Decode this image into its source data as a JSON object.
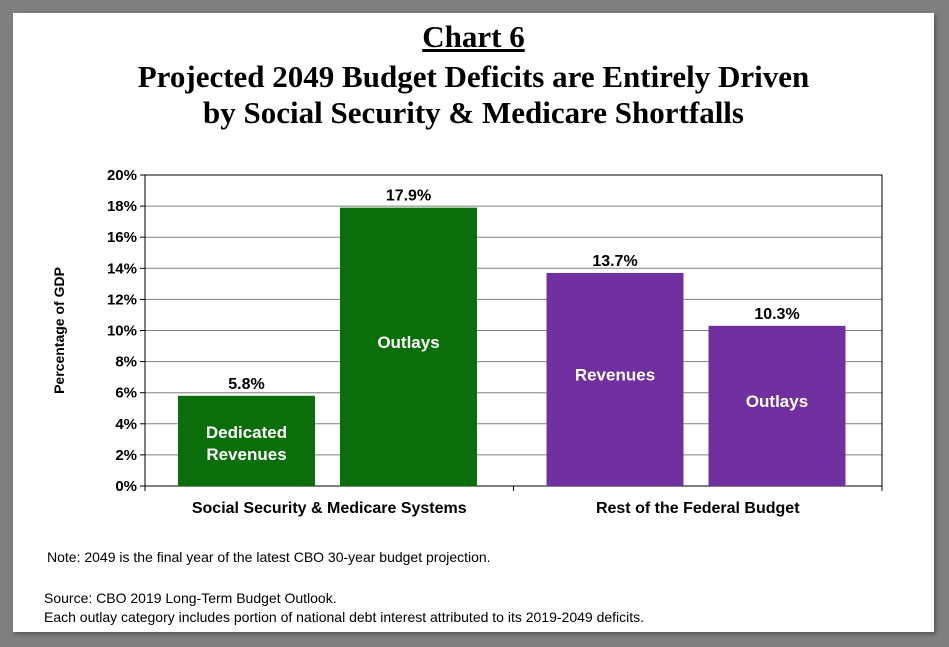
{
  "chart_data": {
    "type": "bar",
    "header": "Chart 6",
    "title_lines": [
      "Projected 2049 Budget Deficits are Entirely Driven",
      "by Social Security & Medicare Shortfalls"
    ],
    "ylabel": "Percentage of GDP",
    "ylim": [
      0,
      20
    ],
    "yticks": [
      "0%",
      "2%",
      "4%",
      "6%",
      "8%",
      "10%",
      "12%",
      "14%",
      "16%",
      "18%",
      "20%"
    ],
    "grid": true,
    "groups": [
      "Social Security & Medicare Systems",
      "Rest of the Federal Budget"
    ],
    "bars": [
      {
        "group": 0,
        "name": "Dedicated Revenues",
        "inner_lines": [
          "Dedicated",
          "Revenues"
        ],
        "value": 5.8,
        "value_label": "5.8%",
        "color": "#0a6e0a"
      },
      {
        "group": 0,
        "name": "Outlays",
        "inner_lines": [
          "Outlays"
        ],
        "value": 17.9,
        "value_label": "17.9%",
        "color": "#0a6e0a"
      },
      {
        "group": 1,
        "name": "Revenues",
        "inner_lines": [
          "Revenues"
        ],
        "value": 13.7,
        "value_label": "13.7%",
        "color": "#7030a0"
      },
      {
        "group": 1,
        "name": "Outlays",
        "inner_lines": [
          "Outlays"
        ],
        "value": 10.3,
        "value_label": "10.3%",
        "color": "#7030a0"
      }
    ]
  },
  "notes": {
    "note": "Note: 2049 is the final year of the latest CBO 30-year budget projection.",
    "source": "Source: CBO 2019 Long-Term Budget Outlook.",
    "outlay_note": "Each outlay category includes portion of national debt interest attributed to its 2019-2049 deficits."
  }
}
